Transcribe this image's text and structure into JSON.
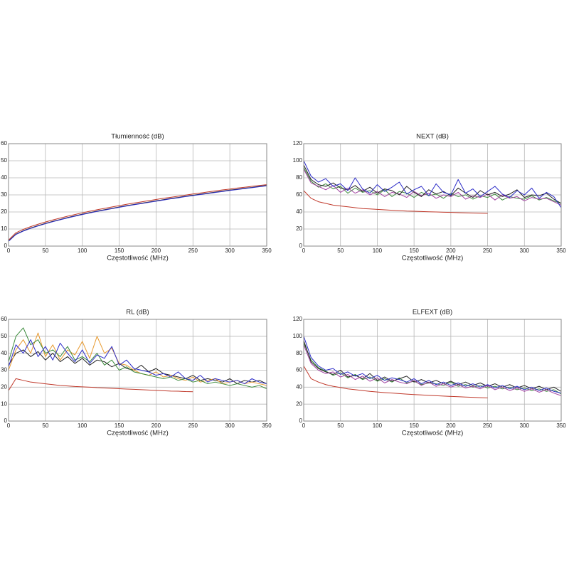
{
  "chart_data": [
    {
      "type": "line",
      "title": "Tłumienność (dB)",
      "x_label": "Częstotliwość (MHz)",
      "x": [
        0,
        10,
        20,
        30,
        40,
        50,
        60,
        70,
        80,
        90,
        100,
        110,
        120,
        130,
        140,
        150,
        160,
        170,
        180,
        190,
        200,
        210,
        220,
        230,
        240,
        250,
        260,
        270,
        280,
        290,
        300,
        310,
        320,
        330,
        340,
        350
      ],
      "xlim": [
        0,
        350
      ],
      "xticks": [
        0,
        50,
        100,
        150,
        200,
        250,
        300,
        350
      ],
      "ylim": [
        0,
        60
      ],
      "yticks": [
        0,
        10,
        20,
        30,
        40,
        50,
        60
      ],
      "grid": true,
      "series": [
        {
          "color": "#c0392b",
          "values": [
            3.5,
            7.8,
            9.8,
            11.4,
            12.8,
            14.1,
            15.3,
            16.4,
            17.5,
            18.5,
            19.5,
            20.4,
            21.3,
            22.1,
            22.9,
            23.7,
            24.5,
            25.2,
            25.9,
            26.6,
            27.3,
            28,
            28.6,
            29.2,
            29.9,
            30.5,
            31.1,
            31.7,
            32.3,
            32.9,
            33.4,
            34,
            34.5,
            35,
            35.5,
            36
          ]
        },
        {
          "color": "#222222",
          "values": [
            3,
            7,
            9,
            10.6,
            12,
            13.3,
            14.5,
            15.6,
            16.7,
            17.7,
            18.7,
            19.6,
            20.5,
            21.3,
            22.1,
            22.9,
            23.7,
            24.4,
            25.1,
            25.8,
            26.5,
            27.2,
            27.9,
            28.5,
            29.2,
            29.8,
            30.4,
            31,
            31.6,
            32.2,
            32.8,
            33.3,
            33.9,
            34.4,
            35,
            35.5
          ]
        },
        {
          "color": "#2c2cc8",
          "values": [
            2.8,
            6.8,
            8.8,
            10.4,
            11.8,
            13.1,
            14.3,
            15.4,
            16.5,
            17.5,
            18.5,
            19.4,
            20.3,
            21.1,
            21.9,
            22.7,
            23.5,
            24.2,
            24.9,
            25.6,
            26.3,
            27,
            27.7,
            28.3,
            29,
            29.6,
            30.2,
            30.8,
            31.4,
            32,
            32.6,
            33.1,
            33.7,
            34.2,
            34.8,
            35.3
          ]
        }
      ]
    },
    {
      "type": "line",
      "title": "NEXT (dB)",
      "x_label": "Częstotliwość (MHz)",
      "x": [
        0,
        10,
        20,
        30,
        40,
        50,
        60,
        70,
        80,
        90,
        100,
        110,
        120,
        130,
        140,
        150,
        160,
        170,
        180,
        190,
        200,
        210,
        220,
        230,
        240,
        250,
        260,
        270,
        280,
        290,
        300,
        310,
        320,
        330,
        340,
        350
      ],
      "xlim": [
        0,
        350
      ],
      "xticks": [
        0,
        50,
        100,
        150,
        200,
        250,
        300,
        350
      ],
      "ylim": [
        0,
        120
      ],
      "yticks": [
        0,
        20,
        40,
        60,
        80,
        100,
        120
      ],
      "grid": true,
      "series": [
        {
          "color": "#3a8a3a",
          "values": [
            92,
            76,
            69,
            73,
            67,
            70,
            62,
            68,
            63,
            65,
            60,
            66,
            58,
            64,
            62,
            57,
            63,
            59,
            61,
            56,
            62,
            58,
            60,
            55,
            59,
            57,
            61,
            54,
            58,
            56,
            55,
            59,
            54,
            57,
            53,
            50
          ]
        },
        {
          "color": "#a040a0",
          "values": [
            90,
            74,
            70,
            66,
            71,
            63,
            68,
            62,
            66,
            60,
            64,
            58,
            63,
            61,
            57,
            64,
            59,
            62,
            56,
            60,
            58,
            63,
            55,
            59,
            57,
            61,
            54,
            60,
            56,
            58,
            53,
            57,
            55,
            56,
            52,
            48
          ]
        },
        {
          "color": "#222222",
          "values": [
            95,
            78,
            72,
            70,
            74,
            68,
            66,
            71,
            64,
            69,
            62,
            67,
            65,
            60,
            70,
            63,
            58,
            66,
            61,
            64,
            59,
            68,
            62,
            57,
            65,
            60,
            63,
            58,
            61,
            66,
            57,
            60,
            59,
            62,
            55,
            50
          ]
        },
        {
          "color": "#2c2cc8",
          "values": [
            100,
            82,
            75,
            79,
            70,
            73,
            65,
            80,
            67,
            62,
            72,
            64,
            69,
            75,
            61,
            66,
            70,
            59,
            73,
            63,
            60,
            78,
            62,
            67,
            58,
            64,
            70,
            61,
            57,
            65,
            60,
            68,
            56,
            63,
            58,
            45
          ]
        },
        {
          "color": "#c0392b",
          "values": [
            65,
            56,
            52,
            50,
            48,
            47,
            46,
            45,
            44,
            43.5,
            43,
            42.5,
            42,
            41.5,
            41,
            40.8,
            40.5,
            40.2,
            40,
            39.7,
            39.5,
            39.2,
            39,
            38.8,
            38.5,
            38.3,
            null,
            null,
            null,
            null,
            null,
            null,
            null,
            null,
            null,
            null
          ]
        }
      ]
    },
    {
      "type": "line",
      "title": "RL (dB)",
      "x_label": "Częstotliwość (MHz)",
      "x": [
        0,
        10,
        20,
        30,
        40,
        50,
        60,
        70,
        80,
        90,
        100,
        110,
        120,
        130,
        140,
        150,
        160,
        170,
        180,
        190,
        200,
        210,
        220,
        230,
        240,
        250,
        260,
        270,
        280,
        290,
        300,
        310,
        320,
        330,
        340,
        350
      ],
      "xlim": [
        0,
        350
      ],
      "xticks": [
        0,
        50,
        100,
        150,
        200,
        250,
        300,
        350
      ],
      "ylim": [
        0,
        60
      ],
      "yticks": [
        0,
        10,
        20,
        30,
        40,
        50,
        60
      ],
      "grid": true,
      "series": [
        {
          "color": "#222222",
          "values": [
            33,
            40,
            42,
            38,
            41,
            36,
            40,
            35,
            38,
            34,
            37,
            33,
            36,
            35,
            32,
            34,
            31,
            30,
            33,
            29,
            31,
            28,
            27,
            26,
            25,
            27,
            24,
            25,
            24,
            23,
            25,
            22,
            24,
            23,
            24,
            22
          ]
        },
        {
          "color": "#e89a30",
          "values": [
            30,
            42,
            48,
            40,
            52,
            38,
            45,
            36,
            42,
            39,
            47,
            37,
            50,
            40,
            43,
            34,
            33,
            30,
            28,
            27,
            29,
            26,
            27,
            25,
            24,
            26,
            23,
            24,
            25,
            22,
            23,
            24,
            22,
            23,
            22,
            21
          ]
        },
        {
          "color": "#3a8a3a",
          "values": [
            35,
            50,
            55,
            45,
            48,
            40,
            42,
            38,
            44,
            36,
            38,
            35,
            40,
            33,
            36,
            30,
            32,
            29,
            28,
            27,
            26,
            25,
            26,
            24,
            25,
            23,
            24,
            22,
            23,
            22,
            21,
            22,
            21,
            20,
            21,
            19
          ]
        },
        {
          "color": "#2c2cc8",
          "values": [
            32,
            45,
            40,
            48,
            38,
            44,
            36,
            46,
            40,
            35,
            42,
            34,
            39,
            37,
            44,
            33,
            36,
            31,
            30,
            29,
            27,
            28,
            26,
            29,
            25,
            24,
            27,
            23,
            25,
            24,
            23,
            24,
            22,
            25,
            23,
            22
          ]
        },
        {
          "color": "#c0392b",
          "values": [
            18,
            25,
            24,
            23,
            22.5,
            22,
            21.5,
            21,
            20.7,
            20.4,
            20.2,
            20,
            19.7,
            19.5,
            19.3,
            19.1,
            18.9,
            18.7,
            18.5,
            18.3,
            18.1,
            17.9,
            17.7,
            17.6,
            17.4,
            17.3,
            null,
            null,
            null,
            null,
            null,
            null,
            null,
            null,
            null,
            null
          ]
        }
      ]
    },
    {
      "type": "line",
      "title": "ELFEXT (dB)",
      "x_label": "Częstotliwość (MHz)",
      "x": [
        0,
        10,
        20,
        30,
        40,
        50,
        60,
        70,
        80,
        90,
        100,
        110,
        120,
        130,
        140,
        150,
        160,
        170,
        180,
        190,
        200,
        210,
        220,
        230,
        240,
        250,
        260,
        270,
        280,
        290,
        300,
        310,
        320,
        330,
        340,
        350
      ],
      "xlim": [
        0,
        350
      ],
      "xticks": [
        0,
        50,
        100,
        150,
        200,
        250,
        300,
        350
      ],
      "ylim": [
        0,
        120
      ],
      "yticks": [
        0,
        20,
        40,
        60,
        80,
        100,
        120
      ],
      "grid": true,
      "series": [
        {
          "color": "#3a8a3a",
          "values": [
            92,
            72,
            63,
            59,
            54,
            57,
            51,
            55,
            49,
            52,
            47,
            50,
            46,
            51,
            45,
            47,
            43,
            45,
            44,
            42,
            46,
            41,
            43,
            40,
            42,
            39,
            41,
            38,
            40,
            37,
            39,
            36,
            38,
            35,
            37,
            32
          ]
        },
        {
          "color": "#222222",
          "values": [
            95,
            70,
            62,
            58,
            55,
            60,
            52,
            54,
            50,
            56,
            48,
            52,
            47,
            50,
            53,
            46,
            49,
            45,
            48,
            44,
            47,
            43,
            46,
            42,
            45,
            41,
            44,
            40,
            43,
            39,
            42,
            38,
            41,
            37,
            40,
            35
          ]
        },
        {
          "color": "#2c2cc8",
          "values": [
            100,
            75,
            65,
            60,
            62,
            55,
            58,
            53,
            56,
            50,
            54,
            48,
            51,
            49,
            46,
            50,
            44,
            48,
            43,
            46,
            42,
            45,
            41,
            44,
            40,
            43,
            39,
            42,
            38,
            41,
            37,
            40,
            36,
            39,
            35,
            33
          ]
        },
        {
          "color": "#a040a0",
          "values": [
            90,
            68,
            60,
            56,
            58,
            52,
            55,
            49,
            53,
            47,
            51,
            45,
            49,
            46,
            44,
            48,
            42,
            46,
            41,
            44,
            40,
            43,
            39,
            41,
            38,
            42,
            37,
            40,
            36,
            39,
            35,
            38,
            34,
            37,
            33,
            30
          ]
        },
        {
          "color": "#c0392b",
          "values": [
            65,
            50,
            46,
            43,
            41,
            39.5,
            38,
            37,
            36,
            35,
            34.3,
            33.6,
            33,
            32.4,
            31.8,
            31.3,
            30.8,
            30.3,
            29.9,
            29.5,
            29.1,
            28.7,
            28.3,
            28,
            27.6,
            27.3,
            null,
            null,
            null,
            null,
            null,
            null,
            null,
            null,
            null,
            null
          ]
        }
      ]
    }
  ]
}
